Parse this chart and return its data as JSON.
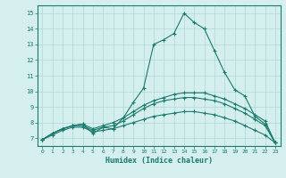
{
  "xlabel": "Humidex (Indice chaleur)",
  "background_color": "#d4efed",
  "line_color": "#1a7a6e",
  "grid_color": "#b0d8d4",
  "xlim": [
    -0.5,
    23.5
  ],
  "ylim": [
    6.5,
    15.5
  ],
  "xticks": [
    0,
    1,
    2,
    3,
    4,
    5,
    6,
    7,
    8,
    9,
    10,
    11,
    12,
    13,
    14,
    15,
    16,
    17,
    18,
    19,
    20,
    21,
    22,
    23
  ],
  "yticks": [
    7,
    8,
    9,
    10,
    11,
    12,
    13,
    14,
    15
  ],
  "curves": [
    {
      "x": [
        0,
        1,
        2,
        3,
        4,
        5,
        6,
        7,
        8,
        9,
        10,
        11,
        12,
        13,
        14,
        15,
        16,
        17,
        18,
        19,
        20,
        21,
        22,
        23
      ],
      "y": [
        6.9,
        7.3,
        7.6,
        7.8,
        7.9,
        7.3,
        7.7,
        7.6,
        8.3,
        9.3,
        10.2,
        13.0,
        13.3,
        13.7,
        15.0,
        14.4,
        14.0,
        12.6,
        11.2,
        10.1,
        9.7,
        8.4,
        7.9,
        6.7
      ]
    },
    {
      "x": [
        0,
        1,
        2,
        3,
        4,
        5,
        6,
        7,
        8,
        9,
        10,
        11,
        12,
        13,
        14,
        15,
        16,
        17,
        18,
        19,
        20,
        21,
        22,
        23
      ],
      "y": [
        6.9,
        7.3,
        7.6,
        7.8,
        7.9,
        7.6,
        7.8,
        8.0,
        8.3,
        8.7,
        9.1,
        9.4,
        9.6,
        9.8,
        9.9,
        9.9,
        9.9,
        9.7,
        9.5,
        9.2,
        8.9,
        8.5,
        8.1,
        6.7
      ]
    },
    {
      "x": [
        0,
        1,
        2,
        3,
        4,
        5,
        6,
        7,
        8,
        9,
        10,
        11,
        12,
        13,
        14,
        15,
        16,
        17,
        18,
        19,
        20,
        21,
        22,
        23
      ],
      "y": [
        6.9,
        7.3,
        7.6,
        7.8,
        7.8,
        7.5,
        7.7,
        7.8,
        8.1,
        8.5,
        8.9,
        9.2,
        9.4,
        9.5,
        9.6,
        9.6,
        9.5,
        9.4,
        9.2,
        8.9,
        8.6,
        8.2,
        7.8,
        6.7
      ]
    },
    {
      "x": [
        0,
        1,
        2,
        3,
        4,
        5,
        6,
        7,
        8,
        9,
        10,
        11,
        12,
        13,
        14,
        15,
        16,
        17,
        18,
        19,
        20,
        21,
        22,
        23
      ],
      "y": [
        6.9,
        7.2,
        7.5,
        7.7,
        7.7,
        7.4,
        7.5,
        7.6,
        7.8,
        8.0,
        8.2,
        8.4,
        8.5,
        8.6,
        8.7,
        8.7,
        8.6,
        8.5,
        8.3,
        8.1,
        7.8,
        7.5,
        7.2,
        6.7
      ]
    }
  ]
}
